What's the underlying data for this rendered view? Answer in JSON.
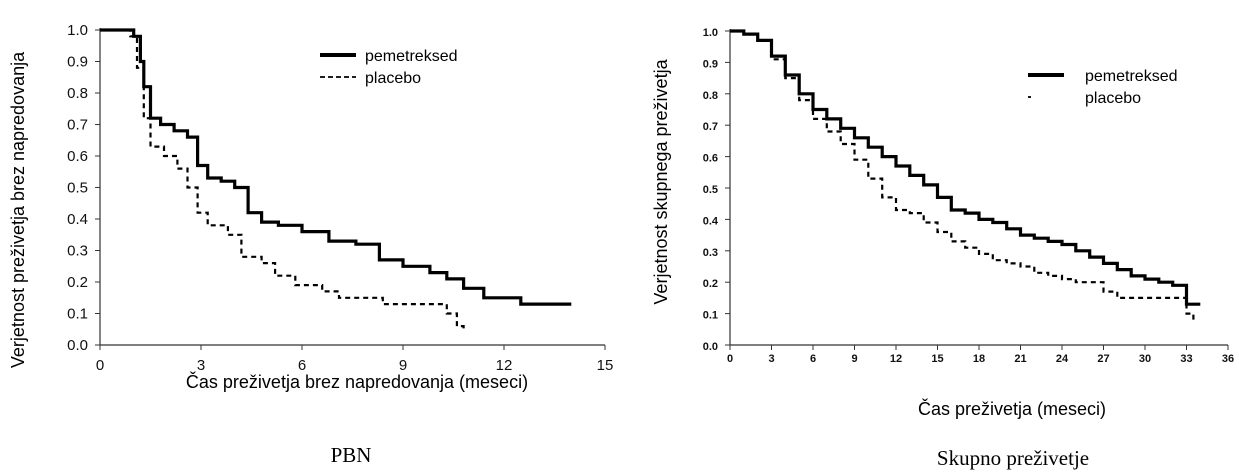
{
  "chart_data": [
    {
      "type": "line",
      "caption": "PBN",
      "xlabel": "Čas preživetja brez napredovanja (meseci)",
      "ylabel": "Verjetnost preživetja brez napredovanja",
      "xlim": [
        0,
        15
      ],
      "ylim": [
        0,
        1
      ],
      "xticks": [
        "0",
        "3",
        "6",
        "9",
        "12",
        "15"
      ],
      "yticks": [
        "0.0",
        "0.1",
        "0.2",
        "0.3",
        "0.4",
        "0.5",
        "0.6",
        "0.7",
        "0.8",
        "0.9",
        "1.0"
      ],
      "legend_position": "top-right",
      "series": [
        {
          "name": "pemetreksed",
          "style": "solid-thick",
          "color": "#000000",
          "points": [
            [
              0,
              1.0
            ],
            [
              0.8,
              1.0
            ],
            [
              1.0,
              0.98
            ],
            [
              1.2,
              0.9
            ],
            [
              1.3,
              0.82
            ],
            [
              1.5,
              0.72
            ],
            [
              1.8,
              0.7
            ],
            [
              2.2,
              0.68
            ],
            [
              2.6,
              0.66
            ],
            [
              2.9,
              0.57
            ],
            [
              3.2,
              0.53
            ],
            [
              3.6,
              0.52
            ],
            [
              4.0,
              0.5
            ],
            [
              4.4,
              0.42
            ],
            [
              4.8,
              0.39
            ],
            [
              5.3,
              0.38
            ],
            [
              6.0,
              0.36
            ],
            [
              6.8,
              0.33
            ],
            [
              7.6,
              0.32
            ],
            [
              8.3,
              0.27
            ],
            [
              9.0,
              0.25
            ],
            [
              9.8,
              0.23
            ],
            [
              10.3,
              0.21
            ],
            [
              10.8,
              0.18
            ],
            [
              11.4,
              0.15
            ],
            [
              12.5,
              0.13
            ],
            [
              14.0,
              0.13
            ]
          ]
        },
        {
          "name": "placebo",
          "style": "dashed",
          "color": "#000000",
          "points": [
            [
              0,
              1.0
            ],
            [
              0.7,
              1.0
            ],
            [
              0.9,
              0.98
            ],
            [
              1.1,
              0.88
            ],
            [
              1.3,
              0.72
            ],
            [
              1.5,
              0.63
            ],
            [
              1.9,
              0.6
            ],
            [
              2.3,
              0.56
            ],
            [
              2.6,
              0.5
            ],
            [
              2.9,
              0.42
            ],
            [
              3.2,
              0.38
            ],
            [
              3.8,
              0.35
            ],
            [
              4.2,
              0.28
            ],
            [
              4.8,
              0.26
            ],
            [
              5.2,
              0.22
            ],
            [
              5.8,
              0.19
            ],
            [
              6.6,
              0.17
            ],
            [
              7.1,
              0.15
            ],
            [
              8.4,
              0.13
            ],
            [
              9.6,
              0.13
            ],
            [
              10.3,
              0.1
            ],
            [
              10.6,
              0.06
            ],
            [
              10.8,
              0.04
            ]
          ]
        }
      ]
    },
    {
      "type": "line",
      "caption": "Skupno preživetje",
      "xlabel": "Čas preživetja (meseci)",
      "ylabel": "Verjetnost skupnega preživetja",
      "xlim": [
        0,
        36
      ],
      "ylim": [
        0,
        1
      ],
      "xticks": [
        "0",
        "3",
        "6",
        "9",
        "12",
        "15",
        "18",
        "21",
        "24",
        "27",
        "30",
        "33",
        "36"
      ],
      "yticks": [
        "0.0",
        "0.1",
        "0.2",
        "0.3",
        "0.4",
        "0.5",
        "0.6",
        "0.7",
        "0.8",
        "0.9",
        "1.0"
      ],
      "legend_position": "top-right",
      "series": [
        {
          "name": "pemetreksed",
          "style": "solid-thick",
          "color": "#000000",
          "points": [
            [
              0,
              1.0
            ],
            [
              1,
              0.99
            ],
            [
              2,
              0.97
            ],
            [
              3,
              0.92
            ],
            [
              4,
              0.86
            ],
            [
              5,
              0.8
            ],
            [
              6,
              0.75
            ],
            [
              7,
              0.72
            ],
            [
              8,
              0.69
            ],
            [
              9,
              0.66
            ],
            [
              10,
              0.63
            ],
            [
              11,
              0.6
            ],
            [
              12,
              0.57
            ],
            [
              13,
              0.54
            ],
            [
              14,
              0.51
            ],
            [
              15,
              0.47
            ],
            [
              16,
              0.43
            ],
            [
              17,
              0.42
            ],
            [
              18,
              0.4
            ],
            [
              19,
              0.39
            ],
            [
              20,
              0.37
            ],
            [
              21,
              0.35
            ],
            [
              22,
              0.34
            ],
            [
              23,
              0.33
            ],
            [
              24,
              0.32
            ],
            [
              25,
              0.3
            ],
            [
              26,
              0.28
            ],
            [
              27,
              0.26
            ],
            [
              28,
              0.24
            ],
            [
              29,
              0.22
            ],
            [
              30,
              0.21
            ],
            [
              31,
              0.2
            ],
            [
              32,
              0.19
            ],
            [
              33,
              0.13
            ],
            [
              34,
              0.13
            ]
          ]
        },
        {
          "name": "placebo",
          "style": "dashed",
          "color": "#000000",
          "points": [
            [
              0,
              1.0
            ],
            [
              1,
              0.99
            ],
            [
              2,
              0.97
            ],
            [
              3,
              0.91
            ],
            [
              4,
              0.85
            ],
            [
              5,
              0.78
            ],
            [
              6,
              0.72
            ],
            [
              7,
              0.68
            ],
            [
              8,
              0.64
            ],
            [
              9,
              0.59
            ],
            [
              10,
              0.53
            ],
            [
              11,
              0.47
            ],
            [
              12,
              0.43
            ],
            [
              13,
              0.42
            ],
            [
              14,
              0.39
            ],
            [
              15,
              0.36
            ],
            [
              16,
              0.33
            ],
            [
              17,
              0.31
            ],
            [
              18,
              0.29
            ],
            [
              19,
              0.27
            ],
            [
              20,
              0.26
            ],
            [
              21,
              0.25
            ],
            [
              22,
              0.23
            ],
            [
              23,
              0.22
            ],
            [
              24,
              0.21
            ],
            [
              25,
              0.2
            ],
            [
              26,
              0.2
            ],
            [
              27,
              0.17
            ],
            [
              28,
              0.15
            ],
            [
              29,
              0.15
            ],
            [
              30,
              0.15
            ],
            [
              31,
              0.15
            ],
            [
              32,
              0.15
            ],
            [
              33,
              0.1
            ],
            [
              33.5,
              0.08
            ]
          ]
        }
      ]
    }
  ]
}
